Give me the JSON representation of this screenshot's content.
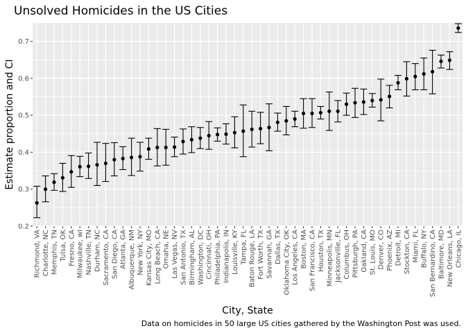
{
  "chart_data": {
    "type": "scatter",
    "title": "Unsolved Homicides in the US Cities",
    "xlabel": "City, State",
    "ylabel": "Estimate proportion and CI",
    "caption": "Data on homicides in 50 large US cities gathered by the Washington Post was used.",
    "ylim": [
      0.2,
      0.75
    ],
    "yticks": [
      0.2,
      0.3,
      0.4,
      0.5,
      0.6,
      0.7
    ],
    "grid": true,
    "background": "#EBEBEB",
    "point_color": "#000000",
    "categories": [
      "Richmond, VA",
      "Charlotte, NC",
      "Memphis, TN",
      "Tulsa, OK",
      "Fresno, CA",
      "Milwaukee, wI",
      "Nashville, TN",
      "Durham, NC",
      "Sacramento, CA",
      "San Diego, CA",
      "Atlanta, GA",
      "Albuquerque, NM",
      "New York, NY",
      "Kansas City, MO",
      "Long Beach, CA",
      "Omaha, NE",
      "Las Vegas, NV",
      "San Antonio, TX",
      "Birmingham, AL",
      "Washington, DC",
      "Cincinnati, OH",
      "Philadelphia, PA",
      "Indianapolis, IN",
      "Louisville, KY",
      "Tampa, FL",
      "Baton Rouge, LA",
      "Fort Worth, TX",
      "Savannah, GA",
      "Dallas, TX",
      "Oklahoma City, OK",
      "Los Angeles, CA",
      "Boston, MA",
      "San Francisco, CA",
      "Houston, TX",
      "Minneapolis, MN",
      "Jacksonville, FL",
      "Columbus, OH",
      "Pittsburgh, PA",
      "Oakland, CA",
      "St. Louis, MO",
      "Denver, CO",
      "Phoenix, AZ",
      "Detroit, MI",
      "Stockton, CA",
      "Miami, FL",
      "Buffalo, NY",
      "San Bernardino, CA",
      "Baltimore, MD",
      "New Orleans, LA",
      "Chicago, IL"
    ],
    "estimate": [
      0.263,
      0.3,
      0.319,
      0.331,
      0.347,
      0.361,
      0.362,
      0.366,
      0.37,
      0.38,
      0.383,
      0.386,
      0.388,
      0.409,
      0.413,
      0.413,
      0.414,
      0.429,
      0.434,
      0.438,
      0.445,
      0.448,
      0.449,
      0.453,
      0.457,
      0.462,
      0.464,
      0.467,
      0.481,
      0.485,
      0.49,
      0.505,
      0.505,
      0.507,
      0.511,
      0.511,
      0.53,
      0.534,
      0.536,
      0.54,
      0.542,
      0.551,
      0.588,
      0.599,
      0.605,
      0.612,
      0.618,
      0.646,
      0.649,
      0.736
    ],
    "ci_low": [
      0.223,
      0.266,
      0.297,
      0.294,
      0.305,
      0.334,
      0.329,
      0.31,
      0.321,
      0.336,
      0.353,
      0.337,
      0.349,
      0.381,
      0.363,
      0.365,
      0.388,
      0.395,
      0.399,
      0.41,
      0.408,
      0.43,
      0.422,
      0.412,
      0.388,
      0.414,
      0.423,
      0.404,
      0.457,
      0.447,
      0.469,
      0.465,
      0.467,
      0.49,
      0.459,
      0.482,
      0.5,
      0.494,
      0.502,
      0.522,
      0.485,
      0.52,
      0.569,
      0.552,
      0.569,
      0.569,
      0.558,
      0.628,
      0.624,
      0.724
    ],
    "ci_high": [
      0.308,
      0.336,
      0.342,
      0.37,
      0.391,
      0.389,
      0.398,
      0.427,
      0.424,
      0.426,
      0.415,
      0.438,
      0.427,
      0.438,
      0.464,
      0.462,
      0.441,
      0.463,
      0.469,
      0.467,
      0.483,
      0.466,
      0.477,
      0.496,
      0.528,
      0.511,
      0.508,
      0.531,
      0.506,
      0.524,
      0.511,
      0.545,
      0.545,
      0.524,
      0.563,
      0.54,
      0.56,
      0.573,
      0.571,
      0.559,
      0.598,
      0.581,
      0.608,
      0.645,
      0.64,
      0.655,
      0.676,
      0.663,
      0.672,
      0.748
    ]
  }
}
